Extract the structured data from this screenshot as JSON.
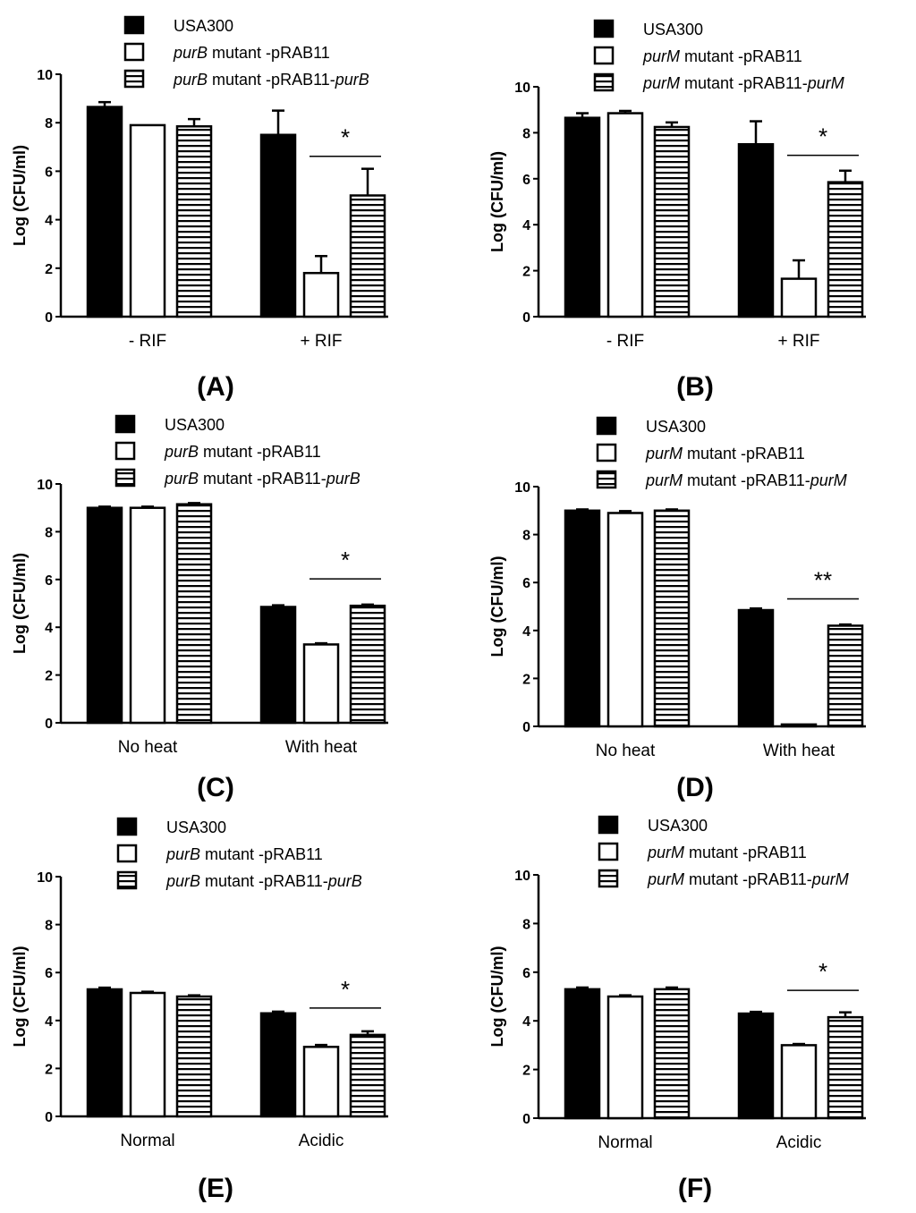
{
  "charts": [
    {
      "chart_data": {
        "type": "bar",
        "panel_label": "(A)",
        "ylabel": "Log (CFU/ml)",
        "xlabel": "",
        "ylim": [
          0,
          10
        ],
        "yticks": [
          "0",
          "2",
          "4",
          "6",
          "8",
          "10"
        ],
        "categories": [
          "- RIF",
          "+ RIF"
        ],
        "legend": [
          {
            "italic": "",
            "text": "USA300"
          },
          {
            "italic": "purB",
            "text": " mutant -pRAB11"
          },
          {
            "italic": "purB",
            "text": " mutant -pRAB11-",
            "suffix_italic": "purB"
          }
        ],
        "series": [
          {
            "name": "USA300",
            "style": "solid",
            "values": [
              8.65,
              7.5
            ],
            "errors": [
              0.2,
              1.0
            ]
          },
          {
            "name": "purB mutant -pRAB11",
            "style": "open",
            "values": [
              7.9,
              1.8
            ],
            "errors": [
              0.0,
              0.7
            ]
          },
          {
            "name": "purB mutant -pRAB11-purB",
            "style": "striped",
            "values": [
              7.85,
              5.0
            ],
            "errors": [
              0.3,
              1.1
            ]
          }
        ],
        "significance": [
          {
            "category": 1,
            "text": "*"
          }
        ]
      }
    },
    {
      "chart_data": {
        "type": "bar",
        "panel_label": "(B)",
        "ylabel": "Log (CFU/ml)",
        "xlabel": "",
        "ylim": [
          0,
          10
        ],
        "yticks": [
          "0",
          "2",
          "4",
          "6",
          "8",
          "10"
        ],
        "categories": [
          "- RIF",
          "+ RIF"
        ],
        "legend": [
          {
            "italic": "",
            "text": "USA300"
          },
          {
            "italic": "purM",
            "text": " mutant -pRAB11"
          },
          {
            "italic": "purM",
            "text": " mutant -pRAB11-",
            "suffix_italic": "purM"
          }
        ],
        "series": [
          {
            "name": "USA300",
            "style": "solid",
            "values": [
              8.65,
              7.5
            ],
            "errors": [
              0.2,
              1.0
            ]
          },
          {
            "name": "purM mutant -pRAB11",
            "style": "open",
            "values": [
              8.85,
              1.65
            ],
            "errors": [
              0.1,
              0.8
            ]
          },
          {
            "name": "purM mutant -pRAB11-purM",
            "style": "striped",
            "values": [
              8.25,
              5.85
            ],
            "errors": [
              0.2,
              0.5
            ]
          }
        ],
        "significance": [
          {
            "category": 1,
            "text": "*"
          }
        ]
      }
    },
    {
      "chart_data": {
        "type": "bar",
        "panel_label": "(C)",
        "ylabel": "Log (CFU/ml)",
        "xlabel": "",
        "ylim": [
          0,
          10
        ],
        "yticks": [
          "0",
          "2",
          "4",
          "6",
          "8",
          "10"
        ],
        "categories": [
          "No heat",
          "With heat"
        ],
        "legend": [
          {
            "italic": "",
            "text": "USA300"
          },
          {
            "italic": "purB",
            "text": " mutant -pRAB11"
          },
          {
            "italic": "purB",
            "text": " mutant -pRAB11-",
            "suffix_italic": "purB"
          }
        ],
        "series": [
          {
            "name": "USA300",
            "style": "solid",
            "values": [
              9.0,
              4.85
            ],
            "errors": [
              0.05,
              0.07
            ]
          },
          {
            "name": "purB mutant -pRAB11",
            "style": "open",
            "values": [
              9.0,
              3.28
            ],
            "errors": [
              0.05,
              0.05
            ]
          },
          {
            "name": "purB mutant -pRAB11-purB",
            "style": "striped",
            "values": [
              9.15,
              4.9
            ],
            "errors": [
              0.05,
              0.05
            ]
          }
        ],
        "significance": [
          {
            "category": 1,
            "text": "*"
          }
        ]
      }
    },
    {
      "chart_data": {
        "type": "bar",
        "panel_label": "(D)",
        "ylabel": "Log (CFU/ml)",
        "xlabel": "",
        "ylim": [
          0,
          10
        ],
        "yticks": [
          "0",
          "2",
          "4",
          "6",
          "8",
          "10"
        ],
        "categories": [
          "No heat",
          "With heat"
        ],
        "legend": [
          {
            "italic": "",
            "text": "USA300"
          },
          {
            "italic": "purM",
            "text": " mutant -pRAB11"
          },
          {
            "italic": "purM",
            "text": " mutant -pRAB11-",
            "suffix_italic": "purM"
          }
        ],
        "series": [
          {
            "name": "USA300",
            "style": "solid",
            "values": [
              9.0,
              4.85
            ],
            "errors": [
              0.05,
              0.07
            ]
          },
          {
            "name": "purM mutant -pRAB11",
            "style": "open",
            "values": [
              8.9,
              0.08
            ],
            "errors": [
              0.08,
              0.0
            ]
          },
          {
            "name": "purM mutant -pRAB11-purM",
            "style": "striped",
            "values": [
              9.0,
              4.2
            ],
            "errors": [
              0.05,
              0.05
            ]
          }
        ],
        "significance": [
          {
            "category": 1,
            "text": "**"
          }
        ]
      }
    },
    {
      "chart_data": {
        "type": "bar",
        "panel_label": "(E)",
        "ylabel": "Log (CFU/ml)",
        "xlabel": "",
        "ylim": [
          0,
          10
        ],
        "yticks": [
          "0",
          "2",
          "4",
          "6",
          "8",
          "10"
        ],
        "categories": [
          "Normal",
          "Acidic"
        ],
        "legend": [
          {
            "italic": "",
            "text": "USA300"
          },
          {
            "italic": "purB",
            "text": " mutant -pRAB11"
          },
          {
            "italic": "purB",
            "text": " mutant -pRAB11-",
            "suffix_italic": "purB"
          }
        ],
        "series": [
          {
            "name": "USA300",
            "style": "solid",
            "values": [
              5.3,
              4.3
            ],
            "errors": [
              0.07,
              0.07
            ]
          },
          {
            "name": "purB mutant -pRAB11",
            "style": "open",
            "values": [
              5.15,
              2.9
            ],
            "errors": [
              0.05,
              0.08
            ]
          },
          {
            "name": "purB mutant -pRAB11-purB",
            "style": "striped",
            "values": [
              5.0,
              3.4
            ],
            "errors": [
              0.05,
              0.15
            ]
          }
        ],
        "significance": [
          {
            "category": 1,
            "text": "*"
          }
        ]
      }
    },
    {
      "chart_data": {
        "type": "bar",
        "panel_label": "(F)",
        "ylabel": "Log (CFU/ml)",
        "xlabel": "",
        "ylim": [
          0,
          10
        ],
        "yticks": [
          "0",
          "2",
          "4",
          "6",
          "8",
          "10"
        ],
        "categories": [
          "Normal",
          "Acidic"
        ],
        "legend": [
          {
            "italic": "",
            "text": "USA300"
          },
          {
            "italic": "purM",
            "text": " mutant -pRAB11"
          },
          {
            "italic": "purM",
            "text": " mutant -pRAB11-",
            "suffix_italic": "purM"
          }
        ],
        "series": [
          {
            "name": "USA300",
            "style": "solid",
            "values": [
              5.3,
              4.3
            ],
            "errors": [
              0.07,
              0.07
            ]
          },
          {
            "name": "purM mutant -pRAB11",
            "style": "open",
            "values": [
              5.0,
              3.0
            ],
            "errors": [
              0.05,
              0.05
            ]
          },
          {
            "name": "purM mutant -pRAB11-purM",
            "style": "striped",
            "values": [
              5.3,
              4.15
            ],
            "errors": [
              0.07,
              0.2
            ]
          }
        ],
        "significance": [
          {
            "category": 1,
            "text": "*"
          }
        ]
      }
    }
  ]
}
